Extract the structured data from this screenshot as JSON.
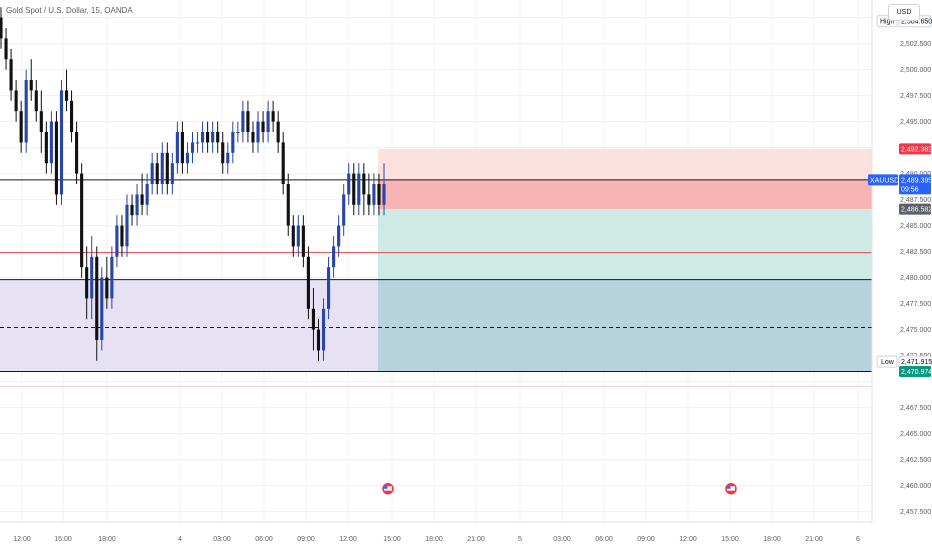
{
  "header": {
    "title": "Gold Spot / U.S. Dollar, 15, OANDA",
    "currency": "USD"
  },
  "price_axis": {
    "ticks": [
      "2,502.500",
      "2,500.000",
      "2,497.500",
      "2,495.000",
      "2,490.000",
      "2,487.500",
      "2,485.000",
      "2,482.500",
      "2,480.000",
      "2,477.500",
      "2,475.000",
      "2,472.500",
      "2,467.500",
      "2,465.000",
      "2,462.500",
      "2,460.000",
      "2,457.500"
    ]
  },
  "time_axis": {
    "labels": [
      "12:00",
      "15:00",
      "18:00",
      "4",
      "03:00",
      "06:00",
      "09:00",
      "12:00",
      "15:00",
      "18:00",
      "21:00",
      "5",
      "03:00",
      "06:00",
      "09:00",
      "12:00",
      "15:00",
      "18:00",
      "21:00",
      "6"
    ]
  },
  "tags": {
    "high_label": "High",
    "high_value": "2,504.650",
    "stop_value": "2,492.382",
    "symbol": "XAUUSD",
    "last_value": "2,489.395",
    "countdown": "09:56",
    "entry_value": "2,486.582",
    "low_label": "Low",
    "low_value": "2,471.915",
    "target_value": "2,470.974"
  },
  "colors": {
    "bull": "#2846a8",
    "bear": "#111111",
    "stop_zone": "#f8b4b4",
    "stop_zone_light": "#fde1de",
    "target_zone": "#cdebe4",
    "target_zone_dark": "#b7d4de",
    "demand_zone": "#e6e2f3",
    "red_line": "#e0494d",
    "last_tag": "#2962ff",
    "stop_tag": "#f23645",
    "target_tag": "#089981"
  },
  "chart_data": {
    "type": "candlestick",
    "instrument": "XAUUSD",
    "interval": "15",
    "y_range": [
      2456.5,
      2506.5
    ],
    "last_price": 2489.395,
    "high": 2504.65,
    "low": 2471.915,
    "position": {
      "stop": 2492.382,
      "entry": 2486.582,
      "target": 2470.974
    },
    "levels": [
      2489.4,
      2482.4,
      2479.8,
      2475.2,
      2470.974
    ],
    "candles": [
      [
        2505,
        2506,
        2502,
        2503
      ],
      [
        2503,
        2504,
        2500,
        2501
      ],
      [
        2501,
        2502,
        2497,
        2498
      ],
      [
        2498,
        2499,
        2495,
        2496
      ],
      [
        2496,
        2497,
        2492,
        2493
      ],
      [
        2493,
        2500,
        2492,
        2499
      ],
      [
        2499,
        2501,
        2497,
        2498
      ],
      [
        2498,
        2499,
        2495,
        2496
      ],
      [
        2496,
        2498,
        2492,
        2494
      ],
      [
        2494,
        2495,
        2490,
        2491
      ],
      [
        2491,
        2496,
        2490,
        2495
      ],
      [
        2495,
        2496,
        2487,
        2488
      ],
      [
        2488,
        2499,
        2487,
        2498
      ],
      [
        2498,
        2500,
        2496,
        2497
      ],
      [
        2497,
        2498,
        2493,
        2494
      ],
      [
        2494,
        2495,
        2489,
        2490
      ],
      [
        2490,
        2491,
        2480,
        2481
      ],
      [
        2481,
        2483,
        2476,
        2478
      ],
      [
        2478,
        2484,
        2476,
        2482
      ],
      [
        2482,
        2483,
        2472,
        2474
      ],
      [
        2474,
        2481,
        2473,
        2480
      ],
      [
        2480,
        2482,
        2477,
        2478
      ],
      [
        2478,
        2483,
        2477,
        2482
      ],
      [
        2482,
        2486,
        2481,
        2485
      ],
      [
        2485,
        2486,
        2482,
        2483
      ],
      [
        2483,
        2488,
        2482,
        2487
      ],
      [
        2487,
        2488,
        2485,
        2486
      ],
      [
        2486,
        2489,
        2485,
        2488
      ],
      [
        2488,
        2490,
        2486,
        2487
      ],
      [
        2487,
        2490,
        2486,
        2489
      ],
      [
        2489,
        2492,
        2488,
        2491
      ],
      [
        2491,
        2492,
        2488,
        2489
      ],
      [
        2489,
        2493,
        2488,
        2492
      ],
      [
        2492,
        2493,
        2488,
        2489
      ],
      [
        2489,
        2492,
        2488,
        2491
      ],
      [
        2491,
        2495,
        2490,
        2494
      ],
      [
        2494,
        2495,
        2490,
        2491
      ],
      [
        2491,
        2493,
        2490,
        2492
      ],
      [
        2492,
        2494,
        2491,
        2493
      ],
      [
        2493,
        2494,
        2492,
        2493
      ],
      [
        2493,
        2495,
        2492,
        2494
      ],
      [
        2494,
        2495,
        2492,
        2493
      ],
      [
        2493,
        2495,
        2492,
        2494
      ],
      [
        2494,
        2495,
        2492,
        2493
      ],
      [
        2493,
        2494,
        2490,
        2491
      ],
      [
        2491,
        2493,
        2490,
        2492
      ],
      [
        2492,
        2495,
        2491,
        2494
      ],
      [
        2494,
        2495,
        2493,
        2494
      ],
      [
        2494,
        2497,
        2493,
        2496
      ],
      [
        2496,
        2497,
        2493,
        2494
      ],
      [
        2494,
        2495,
        2492,
        2493
      ],
      [
        2493,
        2496,
        2492,
        2495
      ],
      [
        2495,
        2496,
        2493,
        2494
      ],
      [
        2494,
        2497,
        2493,
        2496
      ],
      [
        2496,
        2497,
        2494,
        2495
      ],
      [
        2495,
        2496,
        2492,
        2493
      ],
      [
        2493,
        2494,
        2488,
        2489
      ],
      [
        2489,
        2490,
        2484,
        2485
      ],
      [
        2485,
        2486,
        2482,
        2483
      ],
      [
        2483,
        2486,
        2482,
        2485
      ],
      [
        2485,
        2486,
        2481,
        2482
      ],
      [
        2482,
        2483,
        2476,
        2477
      ],
      [
        2477,
        2479,
        2473,
        2475
      ],
      [
        2475,
        2476,
        2472,
        2473
      ],
      [
        2473,
        2478,
        2472,
        2477
      ],
      [
        2477,
        2482,
        2476,
        2481
      ],
      [
        2481,
        2484,
        2480,
        2483
      ],
      [
        2483,
        2486,
        2482,
        2485
      ],
      [
        2485,
        2489,
        2484,
        2488
      ],
      [
        2488,
        2491,
        2487,
        2490
      ],
      [
        2490,
        2491,
        2486,
        2487
      ],
      [
        2487,
        2491,
        2486,
        2490
      ],
      [
        2490,
        2491,
        2486,
        2488
      ],
      [
        2488,
        2490,
        2486,
        2487
      ],
      [
        2487,
        2490,
        2486,
        2489
      ],
      [
        2489,
        2490,
        2486,
        2487
      ],
      [
        2487,
        2491,
        2486,
        2489
      ]
    ]
  }
}
